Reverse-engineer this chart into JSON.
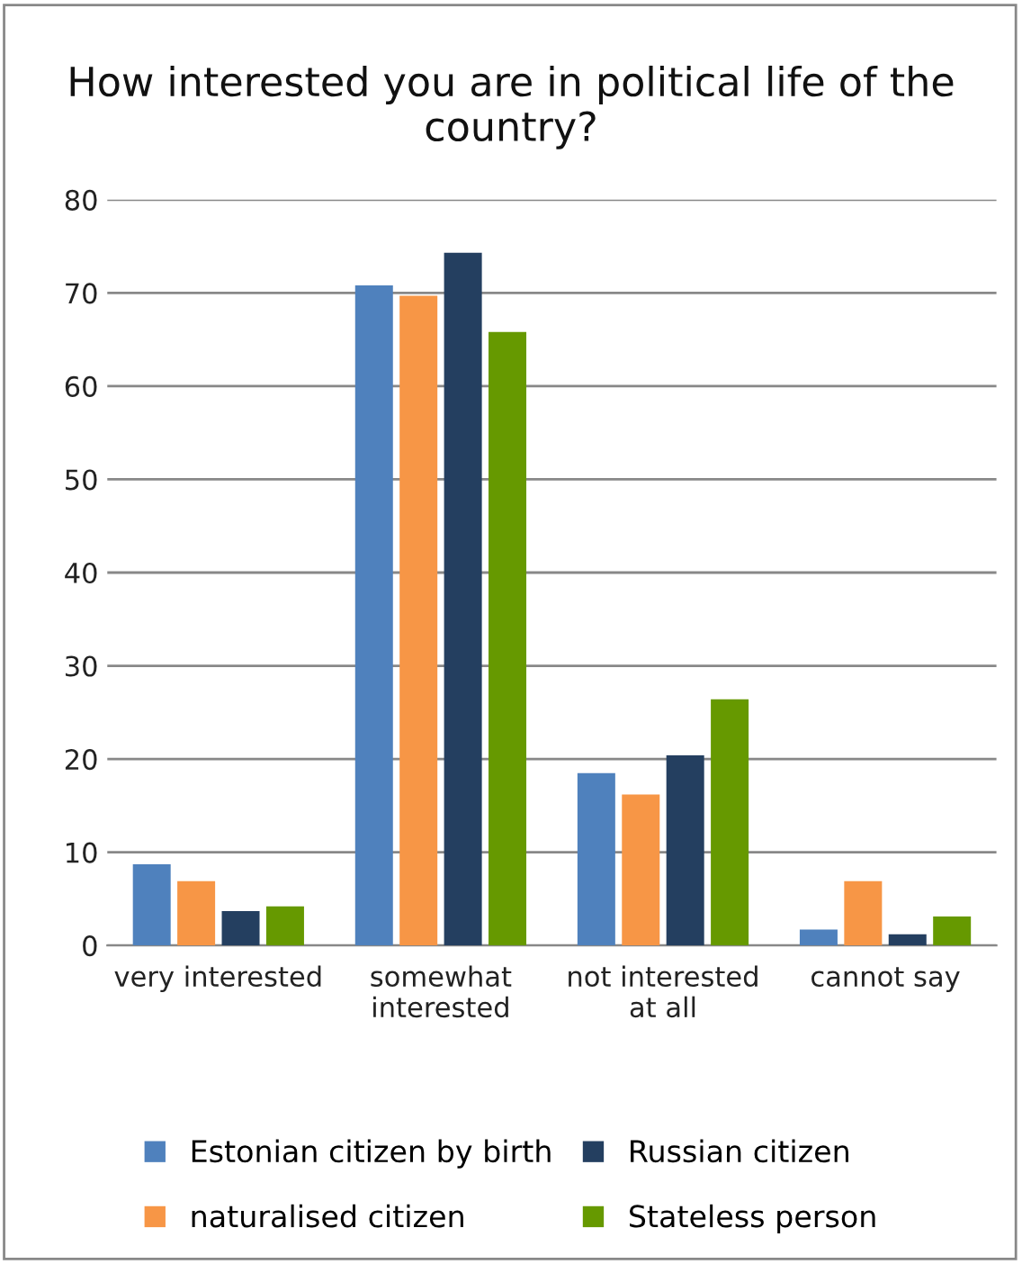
{
  "chart_data": {
    "type": "bar",
    "title": "How interested you are in political life of the country?",
    "categories": [
      "very interested",
      "somewhat interested",
      "not interested at all",
      "cannot say"
    ],
    "series": [
      {
        "name": "Estonian citizen by birth",
        "color": "#4f81bd",
        "values": [
          8.7,
          70.8,
          18.5,
          1.7
        ]
      },
      {
        "name": "naturalised citizen",
        "color": "#f79646",
        "values": [
          6.9,
          69.7,
          16.2,
          6.9
        ]
      },
      {
        "name": "Russian citizen",
        "color": "#243f60",
        "values": [
          3.7,
          74.3,
          20.4,
          1.2
        ]
      },
      {
        "name": "Stateless person",
        "color": "#669900",
        "values": [
          4.2,
          65.8,
          26.4,
          3.1
        ]
      }
    ],
    "ylim": [
      0,
      80
    ],
    "yticks": [
      0,
      10,
      20,
      30,
      40,
      50,
      60,
      70,
      80
    ],
    "grid": "y",
    "legend": "bottom"
  }
}
